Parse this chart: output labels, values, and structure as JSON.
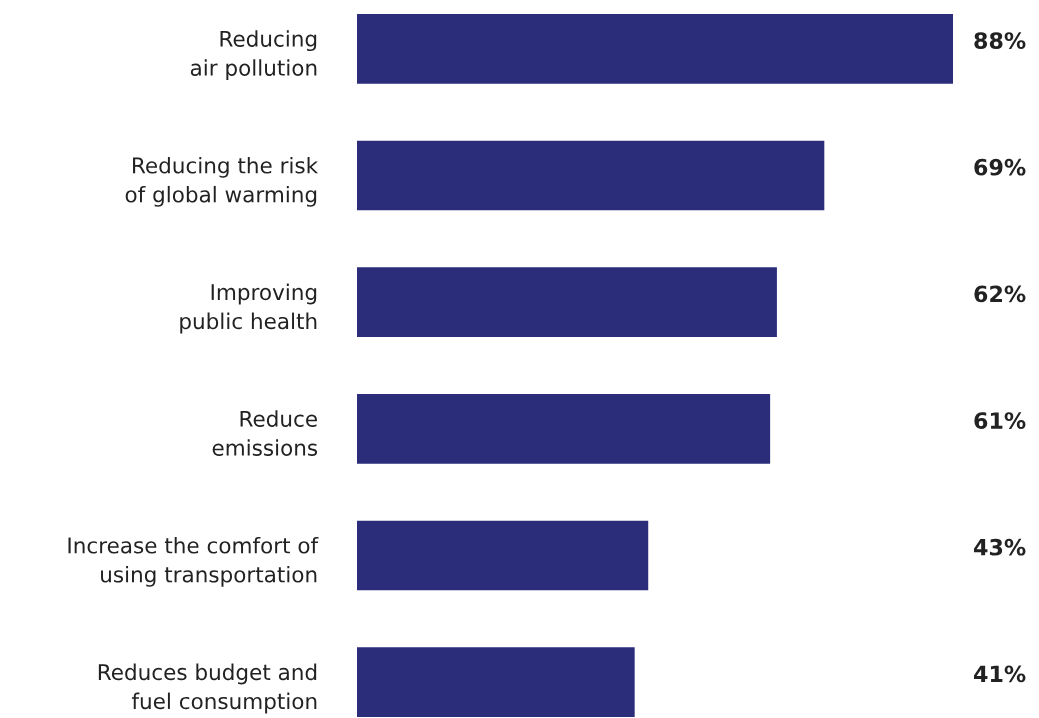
{
  "chart_data": {
    "type": "bar",
    "orientation": "horizontal",
    "categories": [
      "Reducing\nair pollution",
      "Reducing the risk\nof global warming",
      "Improving\npublic health",
      "Reduce\nemissions",
      "Increase the comfort of\nusing transportation",
      "Reduces budget and\nfuel consumption"
    ],
    "values": [
      88,
      69,
      62,
      61,
      43,
      41
    ],
    "color": "#2b2d7a",
    "value_labels": [
      "88%",
      "69%",
      "62%",
      "61%",
      "43%",
      "41%"
    ],
    "grid": false,
    "tick_labels": "y"
  }
}
